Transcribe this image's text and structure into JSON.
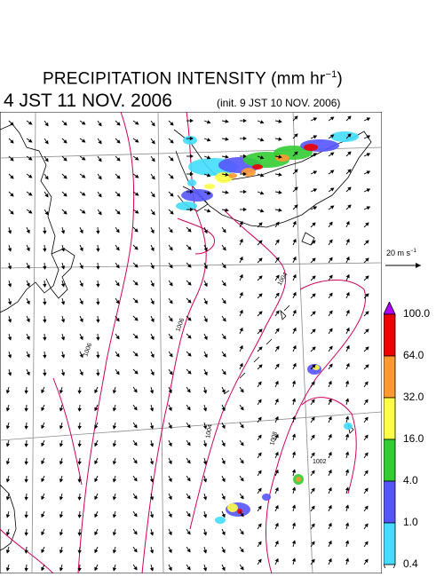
{
  "header": {
    "title_main": "PRECIPITATION INTENSITY (mm hr",
    "title_exp": "−1",
    "title_close": ")",
    "valid_time": "4 JST 11 NOV. 2006",
    "init_time": "(init. 9 JST 10 NOV. 2006)"
  },
  "map": {
    "isobar_labels": [
      "1004",
      "1004",
      "1006",
      "1006",
      "1004",
      "1008",
      "1002"
    ],
    "isobar_color": "#d1005d",
    "grid_color": "#8a8a8a",
    "coast_color": "#000000"
  },
  "wind_scale": {
    "label": "20 m s",
    "exp": "−1"
  },
  "colorbar": {
    "unit": "mm hr-1",
    "levels": [
      "100.0",
      "64.0",
      "32.0",
      "16.0",
      "4.0",
      "1.0",
      "0.4"
    ],
    "colors": [
      "#cc00cc",
      "#ee0000",
      "#ff9933",
      "#ffff44",
      "#33cc33",
      "#5555ff",
      "#44ddff"
    ],
    "top_arrow_color": "#b000ff",
    "bottom_arrow_color": "#ffffff"
  }
}
